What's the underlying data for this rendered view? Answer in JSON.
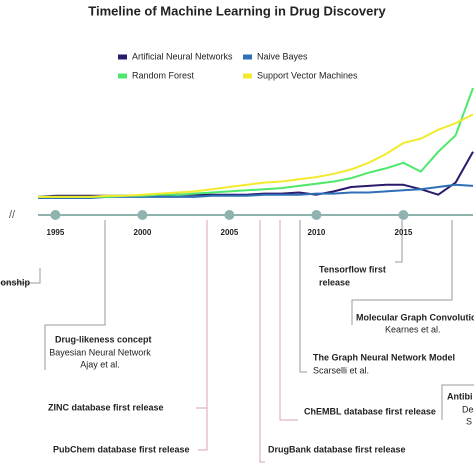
{
  "chart_data": {
    "type": "line",
    "title": "Timeline of Machine Learning in Drug Discovery",
    "x": [
      1994,
      1995,
      1996,
      1997,
      1998,
      1999,
      2000,
      2001,
      2002,
      2003,
      2004,
      2005,
      2006,
      2007,
      2008,
      2009,
      2010,
      2011,
      2012,
      2013,
      2014,
      2015,
      2016,
      2017,
      2018,
      2019
    ],
    "xlim": [
      1994,
      2019
    ],
    "ylim": [
      0,
      100
    ],
    "xticks": [
      1995,
      2000,
      2005,
      2010,
      2015
    ],
    "axis_break": "//",
    "series": [
      {
        "name": "Artificial Neural Networks",
        "color": "#2b1a6b",
        "values": [
          1,
          2,
          2,
          2,
          2,
          2,
          2,
          2,
          3,
          3,
          3,
          3,
          3,
          4,
          4,
          5,
          3,
          6,
          10,
          11,
          12,
          12,
          8,
          3,
          14,
          42
        ]
      },
      {
        "name": "Naive Bayes",
        "color": "#2e6fb5",
        "values": [
          0,
          0,
          0,
          0,
          1,
          1,
          1,
          1,
          1,
          1,
          2,
          2,
          2,
          3,
          3,
          3,
          4,
          4,
          5,
          5,
          6,
          7,
          8,
          10,
          12,
          11
        ]
      },
      {
        "name": "Random Forest",
        "color": "#4de86a",
        "values": [
          1,
          1,
          1,
          1,
          1,
          2,
          2,
          3,
          3,
          4,
          5,
          6,
          7,
          8,
          9,
          11,
          13,
          15,
          18,
          23,
          27,
          32,
          24,
          42,
          57,
          100
        ]
      },
      {
        "name": "Support Vector Machines",
        "color": "#f2ea2e",
        "values": [
          1,
          1,
          1,
          1,
          2,
          2,
          3,
          4,
          5,
          6,
          8,
          10,
          12,
          14,
          15,
          17,
          19,
          22,
          26,
          32,
          40,
          50,
          54,
          62,
          68,
          76
        ]
      }
    ],
    "annotations": [
      [
        "onship"
      ],
      [
        "Drug-likeness concept",
        "Bayesian Neural Network",
        "Ajay et al."
      ],
      [
        "ZINC database first release"
      ],
      [
        "PubChem database first release"
      ],
      [
        "DrugBank database first release"
      ],
      [
        "ChEMBL database first release"
      ],
      [
        "The Graph Neural Network Model",
        "Scarselli et al."
      ],
      [
        "Tensorflow first",
        "release"
      ],
      [
        "Molecular Graph Convolutio",
        "Kearnes et al."
      ],
      [
        "Antibi",
        "De",
        "S"
      ]
    ]
  }
}
